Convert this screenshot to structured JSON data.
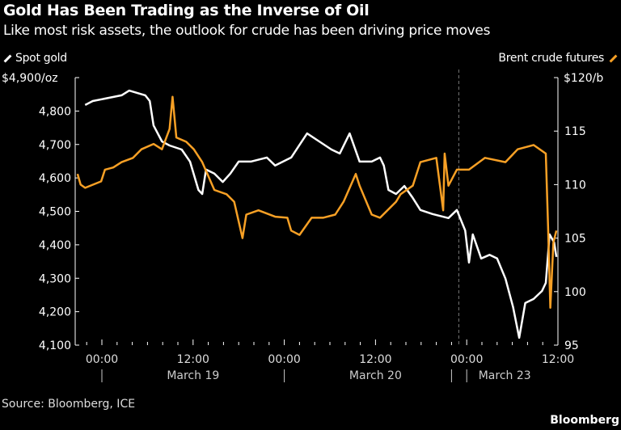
{
  "chart_data": {
    "type": "line",
    "title": "Gold Has Been Trading as the Inverse of Oil",
    "subtitle": "Like most risk assets, the outlook for crude has been driving price moves",
    "x_unit": "hours from March 19 00:00 (trading-time axis, weekend removed)",
    "x_ticks": [
      {
        "h": 0,
        "label": "00:00"
      },
      {
        "h": 12,
        "label": "12:00"
      },
      {
        "h": 24,
        "label": "00:00"
      },
      {
        "h": 36,
        "label": "12:00"
      },
      {
        "h": 48,
        "label": "00:00"
      },
      {
        "h": 60,
        "label": "12:00"
      }
    ],
    "date_labels": [
      {
        "h": 12,
        "label": "March 19"
      },
      {
        "h": 36,
        "label": "March 20"
      },
      {
        "h": 53,
        "label": "March 23"
      }
    ],
    "date_separators": [
      0,
      24,
      46,
      48
    ],
    "weekend_break_h": 46,
    "xlim": [
      -3.5,
      60.5
    ],
    "left_axis": {
      "label": "$4,900/oz",
      "ylim": [
        4100,
        4900
      ],
      "ticks": [
        "4,100",
        "4,200",
        "4,300",
        "4,400",
        "4,500",
        "4,600",
        "4,700",
        "4,800"
      ]
    },
    "right_axis": {
      "label": "$120/b",
      "ylim": [
        95,
        120
      ],
      "ticks": [
        "95",
        "100",
        "105",
        "110",
        "115"
      ]
    },
    "series": [
      {
        "name": "Spot gold",
        "axis": "left",
        "color": "#ffffff",
        "x": [
          -2.2,
          -1.2,
          2.6,
          3.6,
          5.7,
          6.3,
          6.8,
          7.9,
          8.9,
          10.5,
          11.6,
          12.7,
          13.2,
          13.7,
          14.8,
          15.9,
          16.9,
          18.0,
          19.6,
          21.7,
          22.8,
          24.9,
          27.0,
          28.6,
          30.2,
          31.3,
          32.6,
          33.9,
          35.5,
          36.6,
          37.1,
          37.7,
          38.7,
          39.8,
          40.9,
          41.9,
          43.5,
          45.6,
          46.7,
          47.8,
          48.3,
          48.8,
          49.9,
          51.0,
          52.0,
          53.1,
          54.1,
          54.9,
          55.7,
          56.8,
          57.9,
          58.4,
          58.9,
          59.5,
          59.8
        ],
        "y": [
          4818,
          4830,
          4847,
          4861,
          4847,
          4830,
          4757,
          4709,
          4697,
          4685,
          4649,
          4564,
          4552,
          4625,
          4613,
          4588,
          4613,
          4649,
          4649,
          4661,
          4637,
          4661,
          4733,
          4709,
          4685,
          4673,
          4733,
          4649,
          4649,
          4661,
          4637,
          4564,
          4552,
          4576,
          4540,
          4504,
          4492,
          4480,
          4504,
          4443,
          4347,
          4431,
          4359,
          4370,
          4359,
          4299,
          4214,
          4122,
          4226,
          4238,
          4262,
          4286,
          4431,
          4407,
          4364
        ]
      },
      {
        "name": "Brent crude futures",
        "axis": "right",
        "color": "#f7a025",
        "x": [
          -3.2,
          -2.8,
          -2.2,
          -0.1,
          0.4,
          1.5,
          2.6,
          4.1,
          5.2,
          6.8,
          7.9,
          8.9,
          9.3,
          9.8,
          11.1,
          12.1,
          13.2,
          14.8,
          16.4,
          17.4,
          18.5,
          19.0,
          20.6,
          22.8,
          24.4,
          24.9,
          26.0,
          27.6,
          29.1,
          30.7,
          31.8,
          33.4,
          33.9,
          35.5,
          36.6,
          38.7,
          39.3,
          40.9,
          41.9,
          44.0,
          44.9,
          45.1,
          45.6,
          46.7,
          48.3,
          50.4,
          53.1,
          54.7,
          56.8,
          58.4,
          58.7,
          59.0,
          59.4,
          59.8
        ],
        "y": [
          111.0,
          110.0,
          109.7,
          110.3,
          111.4,
          111.6,
          112.1,
          112.5,
          113.3,
          113.8,
          113.3,
          115.2,
          118.2,
          114.4,
          114.0,
          113.3,
          112.1,
          109.5,
          109.1,
          108.4,
          105.0,
          107.2,
          107.6,
          107.0,
          106.9,
          105.7,
          105.3,
          106.9,
          106.9,
          107.2,
          108.4,
          111.0,
          109.9,
          107.2,
          106.9,
          108.4,
          109.1,
          109.9,
          112.1,
          112.5,
          107.6,
          112.9,
          109.9,
          111.4,
          111.4,
          112.5,
          112.1,
          113.3,
          113.7,
          112.9,
          106.1,
          98.5,
          104.6,
          105.7
        ]
      }
    ],
    "legend": "top"
  },
  "footer": {
    "source": "Source: Bloomberg, ICE",
    "brand": "Bloomberg"
  }
}
